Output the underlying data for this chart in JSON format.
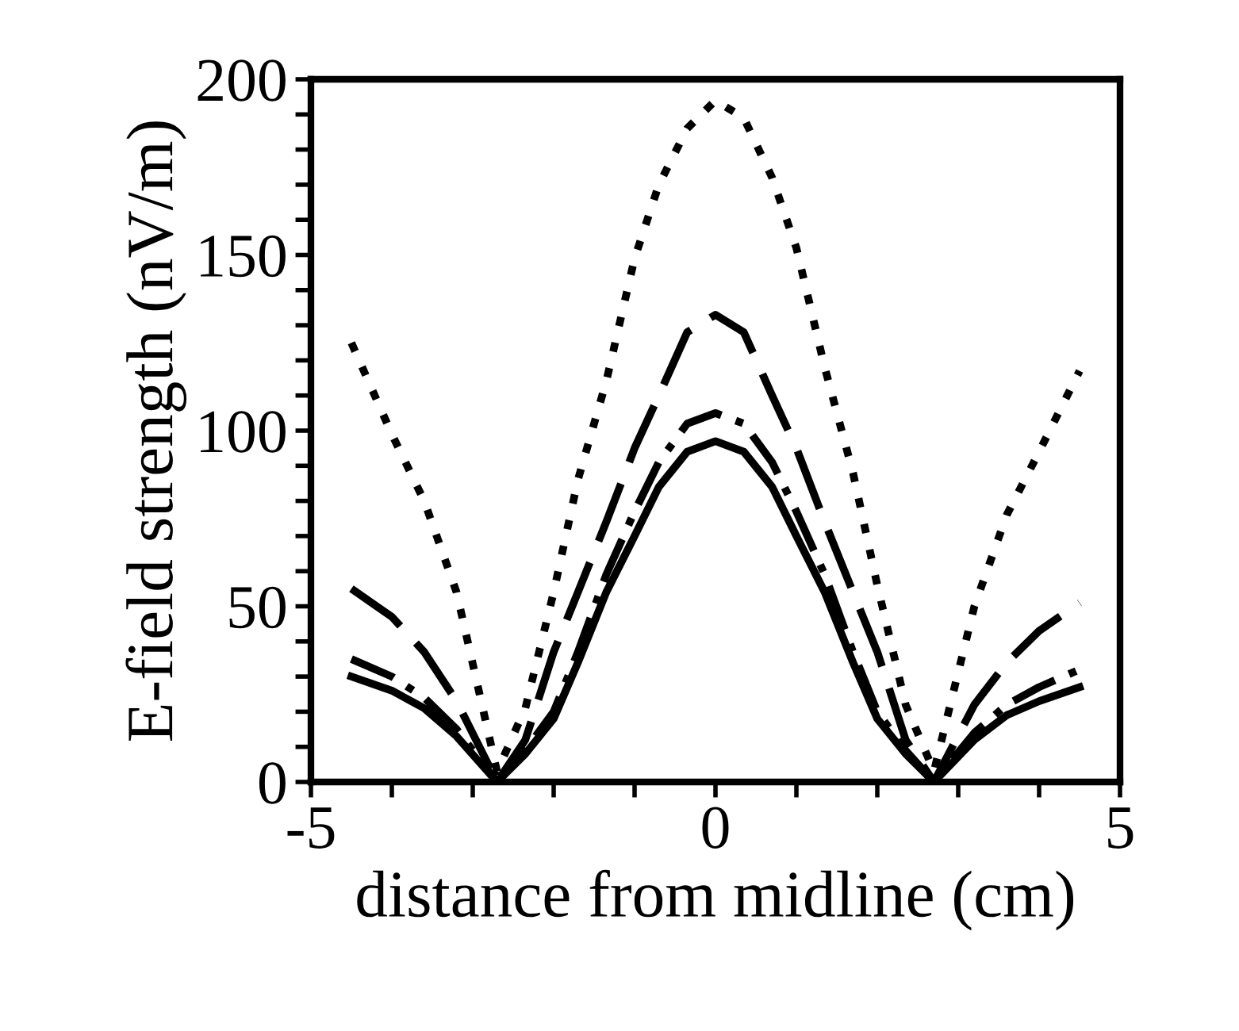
{
  "chart_data": {
    "type": "line",
    "xlabel": "distance from midline (cm)",
    "ylabel": "E-field strength (nV/m)",
    "x": [
      -4.5,
      -4,
      -3.6,
      -3.2,
      -2.7,
      -2.35,
      -2,
      -1.7,
      -1.35,
      -1,
      -0.7,
      -0.35,
      0,
      0.35,
      0.7,
      1,
      1.35,
      1.7,
      2,
      2.35,
      2.7,
      3.2,
      3.6,
      4,
      4.5
    ],
    "series": [
      {
        "color": "#000000",
        "line_style": "solid",
        "values": [
          30,
          26,
          21,
          13,
          0,
          8,
          18,
          34,
          54,
          70,
          84,
          94,
          97,
          94,
          84,
          70,
          54,
          34,
          18,
          8,
          0,
          12,
          19,
          23,
          27
        ]
      },
      {
        "color": "#000000",
        "line_style": "dashdot",
        "values": [
          35,
          30,
          24,
          15,
          0,
          9,
          20,
          37,
          59,
          77,
          91,
          102,
          105,
          102,
          91,
          77,
          59,
          37,
          20,
          9,
          0,
          14,
          22,
          27,
          32
        ]
      },
      {
        "color": "#000000",
        "line_style": "dashed",
        "values": [
          55,
          47,
          37,
          23,
          0,
          12,
          37,
          54,
          74,
          95,
          110,
          128,
          133,
          128,
          110,
          95,
          74,
          54,
          37,
          12,
          0,
          22,
          34,
          43,
          51
        ]
      },
      {
        "color": "#000000",
        "line_style": "dotted",
        "values": [
          125,
          99,
          80,
          54,
          3,
          21,
          54,
          86,
          114,
          149,
          170,
          186,
          194,
          189,
          172,
          152,
          118,
          88,
          56,
          22,
          3,
          50,
          76,
          94,
          117
        ]
      }
    ],
    "xlim": [
      -5,
      5
    ],
    "ylim": [
      0,
      200
    ],
    "xticks": [
      -5,
      {
        "value": -4,
        "label": null
      },
      {
        "value": -3,
        "label": null
      },
      {
        "value": -2,
        "label": null
      },
      {
        "value": -1,
        "label": null
      },
      0,
      {
        "value": 1,
        "label": null
      },
      {
        "value": 2,
        "label": null
      },
      {
        "value": 3,
        "label": null
      },
      {
        "value": 4,
        "label": null
      },
      5
    ],
    "yticks": [
      0,
      {
        "value": 10,
        "label": null
      },
      {
        "value": 20,
        "label": null
      },
      {
        "value": 30,
        "label": null
      },
      {
        "value": 40,
        "label": null
      },
      50,
      {
        "value": 60,
        "label": null
      },
      {
        "value": 70,
        "label": null
      },
      {
        "value": 80,
        "label": null
      },
      {
        "value": 90,
        "label": null
      },
      100,
      {
        "value": 110,
        "label": null
      },
      {
        "value": 120,
        "label": null
      },
      {
        "value": 130,
        "label": null
      },
      {
        "value": 140,
        "label": null
      },
      150,
      {
        "value": 160,
        "label": null
      },
      {
        "value": 170,
        "label": null
      },
      {
        "value": 180,
        "label": null
      },
      {
        "value": 190,
        "label": null
      },
      200
    ],
    "grid": false,
    "legend": false
  }
}
